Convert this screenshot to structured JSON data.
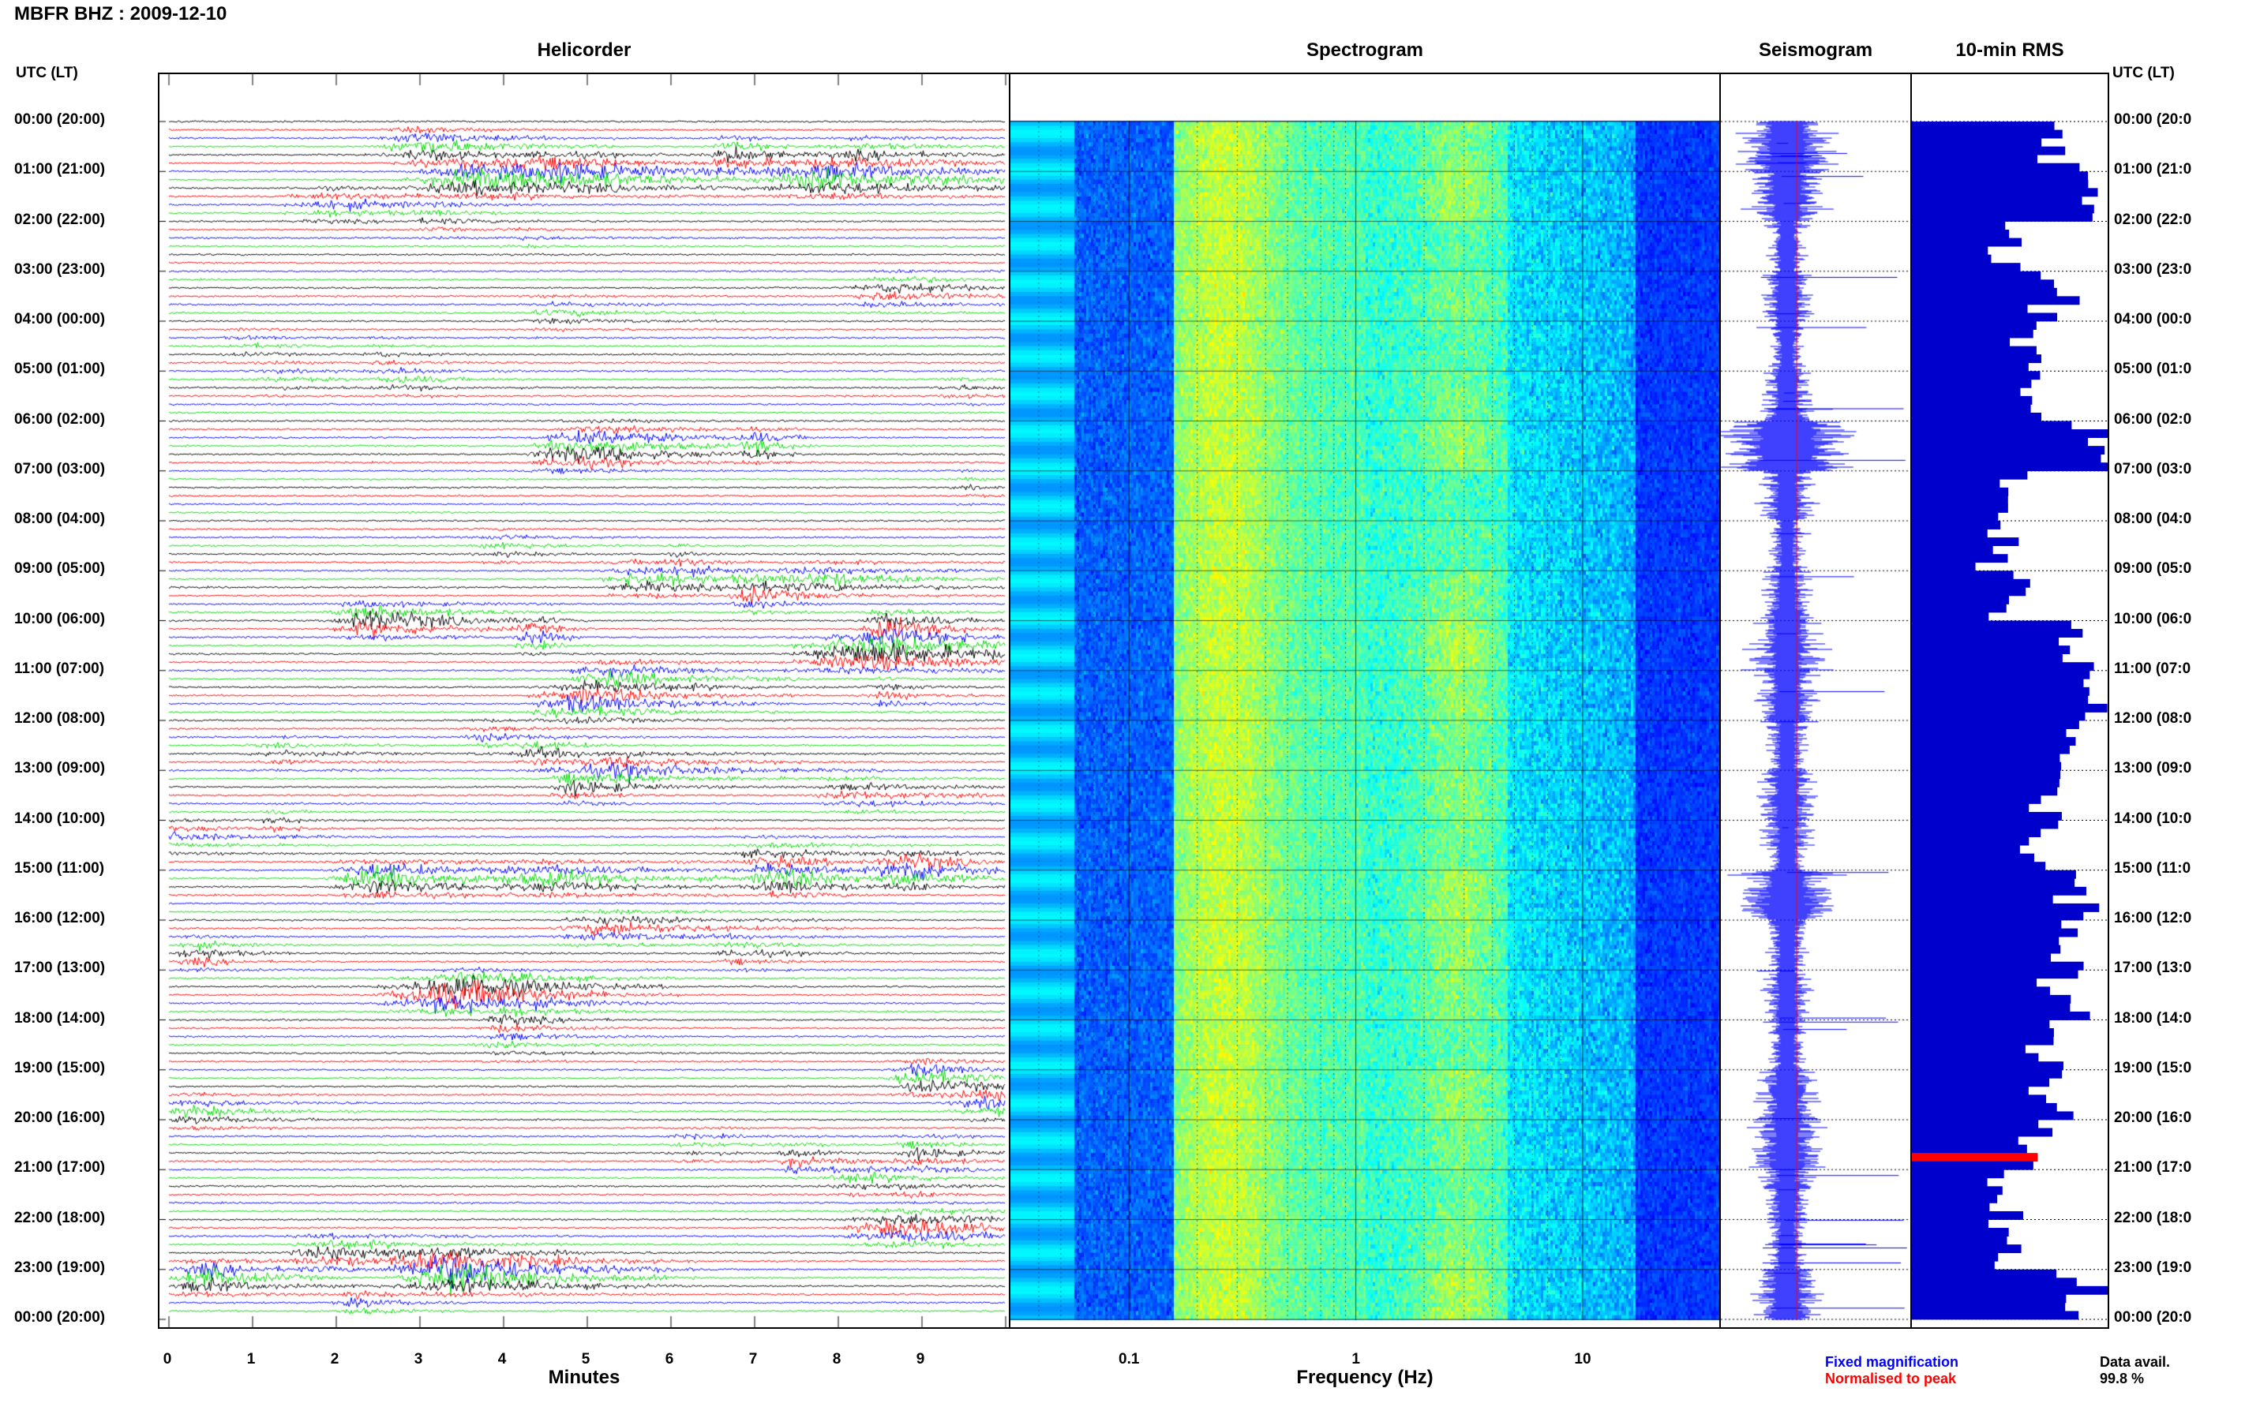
{
  "title": "MBFR BHZ : 2009-12-10",
  "panels": {
    "helicorder": "Helicorder",
    "spectrogram": "Spectrogram",
    "seismogram": "Seismogram",
    "rms": "10-min RMS"
  },
  "utc_label": "UTC (LT)",
  "time_labels": [
    "00:00 (20:00)",
    "01:00 (21:00)",
    "02:00 (22:00)",
    "03:00 (23:00)",
    "04:00 (00:00)",
    "05:00 (01:00)",
    "06:00 (02:00)",
    "07:00 (03:00)",
    "08:00 (04:00)",
    "09:00 (05:00)",
    "10:00 (06:00)",
    "11:00 (07:00)",
    "12:00 (08:00)",
    "13:00 (09:00)",
    "14:00 (10:00)",
    "15:00 (11:00)",
    "16:00 (12:00)",
    "17:00 (13:00)",
    "18:00 (14:00)",
    "19:00 (15:00)",
    "20:00 (16:00)",
    "21:00 (17:00)",
    "22:00 (18:00)",
    "23:00 (19:00)",
    "00:00 (20:00)"
  ],
  "right_time_labels": [
    "00:00 (20:0",
    "01:00 (21:0",
    "02:00 (22:0",
    "03:00 (23:0",
    "04:00 (00:0",
    "05:00 (01:0",
    "06:00 (02:0",
    "07:00 (03:0",
    "08:00 (04:0",
    "09:00 (05:0",
    "10:00 (06:0",
    "11:00 (07:0",
    "12:00 (08:0",
    "13:00 (09:0",
    "14:00 (10:0",
    "15:00 (11:0",
    "16:00 (12:0",
    "17:00 (13:0",
    "18:00 (14:0",
    "19:00 (15:0",
    "20:00 (16:0",
    "21:00 (17:0",
    "22:00 (18:0",
    "23:00 (19:0",
    "00:00 (20:0"
  ],
  "colors": {
    "trace_cycle": [
      "#000000",
      "#ff0000",
      "#0000ff",
      "#00dd00"
    ],
    "seismogram": "#0000ff",
    "normalised": "#ff0000",
    "rms_bar": "#0000cc",
    "rms_flag": "#ff0000"
  },
  "legend": {
    "fixed": "Fixed magnification",
    "normalised": "Normalised to peak"
  },
  "data_availability": {
    "label": "Data avail.",
    "value": "99.8 %"
  },
  "chart_data": [
    {
      "type": "line",
      "name": "Helicorder",
      "xlabel": "Minutes",
      "x_ticks": [
        "0",
        "1",
        "2",
        "3",
        "4",
        "5",
        "6",
        "7",
        "8",
        "9"
      ],
      "xlim": [
        0,
        10
      ],
      "rows": 144,
      "row_duration_min": 10,
      "event_intensity_by_hour": [
        0.6,
        0.8,
        0.3,
        0.5,
        0.3,
        0.5,
        0.7,
        0.2,
        0.3,
        0.6,
        0.9,
        0.7,
        0.5,
        0.6,
        0.5,
        0.8,
        0.7,
        0.6,
        0.4,
        0.7,
        0.5,
        0.4,
        0.6,
        0.9
      ]
    },
    {
      "type": "heatmap",
      "name": "Spectrogram",
      "xlabel": "Frequency (Hz)",
      "x_scale": "log",
      "x_ticks": [
        "0.1",
        "1",
        "10"
      ],
      "xlim": [
        0.03,
        40
      ],
      "y": "time UTC 00:00 to 24:00",
      "colormap": "jet"
    },
    {
      "type": "line",
      "name": "Seismogram",
      "y": "time UTC 00:00 to 24:00",
      "envelope_by_hour": [
        0.28,
        0.22,
        0.12,
        0.14,
        0.1,
        0.15,
        0.45,
        0.14,
        0.1,
        0.14,
        0.2,
        0.18,
        0.12,
        0.16,
        0.13,
        0.28,
        0.13,
        0.14,
        0.12,
        0.18,
        0.2,
        0.14,
        0.12,
        0.2
      ]
    },
    {
      "type": "bar",
      "name": "10-min RMS",
      "orientation": "horizontal",
      "bins": 144,
      "hourly_rms": [
        0.75,
        0.95,
        0.5,
        0.7,
        0.55,
        0.6,
        0.95,
        0.5,
        0.45,
        0.55,
        0.85,
        0.9,
        0.8,
        0.7,
        0.6,
        0.85,
        0.75,
        0.8,
        0.7,
        0.75,
        0.65,
        0.55,
        0.5,
        0.85
      ],
      "flagged_bin": 124
    }
  ]
}
